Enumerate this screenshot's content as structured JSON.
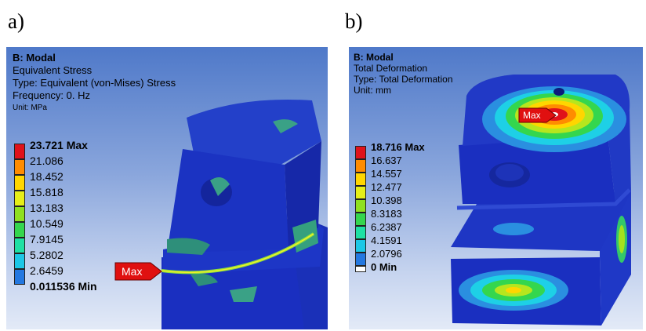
{
  "figure_labels": {
    "a": "a)",
    "b": "b)"
  },
  "panel_a": {
    "title": "B: Modal",
    "result": "Equivalent Stress",
    "type": "Type: Equivalent (von-Mises) Stress",
    "frequency": "Frequency: 0. Hz",
    "unit": "Unit: MPa",
    "legend": [
      "23.721 Max",
      "21.086",
      "18.452",
      "15.818",
      "13.183",
      "10.549",
      "7.9145",
      "5.2802",
      "2.6459",
      "0.011536 Min"
    ],
    "max_tag": "Max"
  },
  "panel_b": {
    "title": "B: Modal",
    "result": "Total Deformation",
    "type": "Type: Total Deformation",
    "unit": "Unit: mm",
    "legend": [
      "18.716 Max",
      "16.637",
      "14.557",
      "12.477",
      "10.398",
      "8.3183",
      "6.2387",
      "4.1591",
      "2.0796",
      "0 Min"
    ],
    "max_tag": "Max"
  },
  "colors": {
    "scale": [
      "#e0121a",
      "#ff8c00",
      "#ffd600",
      "#e6ee18",
      "#8fe020",
      "#34d64e",
      "#1ee0a4",
      "#1cc7e6",
      "#2478e0",
      "#0a16c8"
    ],
    "body_blue": "#1a2fc0",
    "max_tag_red": "#e01010"
  }
}
